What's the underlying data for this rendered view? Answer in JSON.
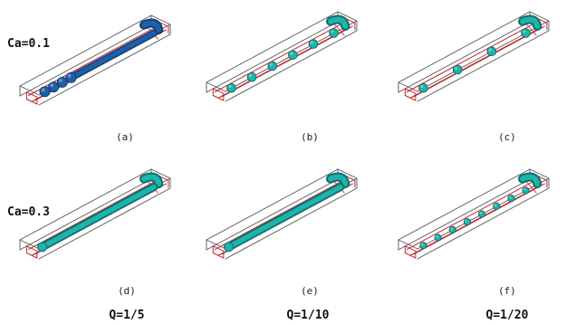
{
  "rows": [
    {
      "label": "Ca=0.1"
    },
    {
      "label": "Ca=0.3"
    }
  ],
  "panels": [
    {
      "label": "(a)",
      "fluid": "blue",
      "kind": "droplets",
      "count": 4
    },
    {
      "label": "(b)",
      "fluid": "cyan",
      "kind": "droplets",
      "count": 6
    },
    {
      "label": "(c)",
      "fluid": "cyan",
      "kind": "droplets",
      "count": 4
    },
    {
      "label": "(d)",
      "fluid": "cyan",
      "kind": "thread",
      "count": 0
    },
    {
      "label": "(e)",
      "fluid": "cyan",
      "kind": "thread",
      "count": 0
    },
    {
      "label": "(f)",
      "fluid": "cyan",
      "kind": "droplets",
      "count": 8
    }
  ],
  "columns": [
    {
      "label": "Q=1/5"
    },
    {
      "label": "Q=1/10"
    },
    {
      "label": "Q=1/20"
    }
  ],
  "colors": {
    "frame_gray": "#555555",
    "frame_red": "#c0282d",
    "blue": "#1f5fa8",
    "blue_dark": "#123e73",
    "cyan": "#1fb3ad",
    "cyan_dark": "#0f6f6b"
  }
}
